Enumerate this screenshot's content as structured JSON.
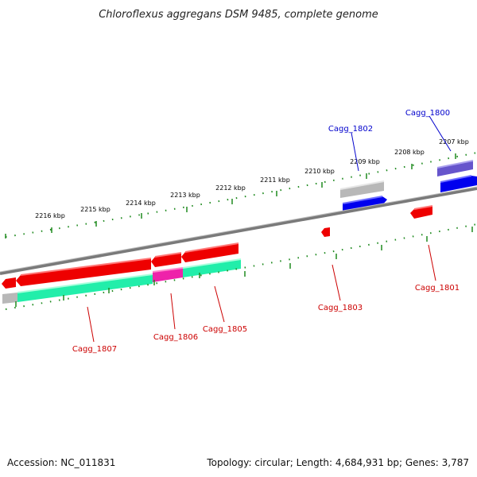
{
  "title": "Chloroflexus aggregans DSM 9485, complete genome",
  "footer": {
    "accession": "Accession: NC_011831",
    "summary": "Topology: circular; Length: 4,684,931 bp; Genes: 3,787"
  },
  "colors": {
    "backbone": "#7a7a7a",
    "tick": "#1f8a1f",
    "label_forward": "#0000cc",
    "label_reverse": "#cc0000",
    "gene_red": "#ee0000",
    "gene_blue": "#0000ee",
    "gene_purple": "#6655cc",
    "rna_grey": "#b8b8b8",
    "rna_green": "#22eeaa",
    "rna_magenta": "#ee22aa"
  },
  "scale": {
    "labels": [
      "2216 kbp",
      "2215 kbp",
      "2214 kbp",
      "2213 kbp",
      "2212 kbp",
      "2211 kbp",
      "2210 kbp",
      "2209 kbp",
      "2208 kbp",
      "2207 kbp"
    ]
  },
  "genes": {
    "Cagg_1800": "Cagg_1800",
    "Cagg_1801": "Cagg_1801",
    "Cagg_1802": "Cagg_1802",
    "Cagg_1803": "Cagg_1803",
    "Cagg_1805": "Cagg_1805",
    "Cagg_1806": "Cagg_1806",
    "Cagg_1807": "Cagg_1807"
  }
}
